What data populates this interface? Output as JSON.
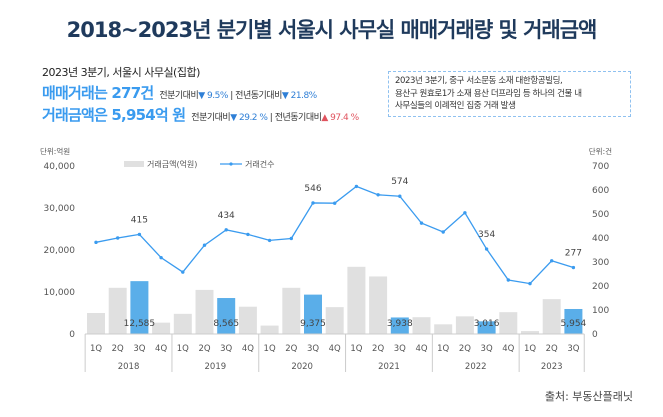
{
  "title": "2018~2023년 분기별 서울시 사무실 매매거래량 및 거래금액",
  "summary": {
    "period": "2023년 3분기, 서울시 사무실(집합)",
    "count_text": "매매거래는 277건",
    "count_qoq_label": "전분기대비",
    "count_qoq": "▼ 9.5%",
    "count_yoy_label": "전년동기대비",
    "count_yoy": "▼ 21.8%",
    "amount_text": "거래금액은  5,954억 원",
    "amount_qoq_label": "전분기대비",
    "amount_qoq": "▼ 29.2 %",
    "amount_yoy_label": "전년동기대비",
    "amount_yoy": "▲ 97.4 %"
  },
  "note": [
    "2023년 3분기, 중구 서소문동 소재 대한항공빌딩,",
    "용산구 원효로1가 소재 용산 더프라임 등 하나의 건물 내",
    "사무실들의 이례적인 집중 거래 발생"
  ],
  "source": "출처: 부동산플래닛",
  "colors": {
    "bar": "#e0e0e0",
    "bar_highlight": "#5aaee9",
    "line": "#3a9bef",
    "title": "#1f3a5c"
  },
  "chart_data": {
    "type": "bar+line",
    "left_unit": "단위:억원",
    "right_unit": "단위:건",
    "ylim_left": [
      0,
      40000
    ],
    "yticks_left": [
      "0",
      "10,000",
      "20,000",
      "30,000",
      "40,000"
    ],
    "ylim_right": [
      0,
      700
    ],
    "yticks_right": [
      "0",
      "100",
      "200",
      "300",
      "400",
      "500",
      "600",
      "700"
    ],
    "years": [
      "2018",
      "2019",
      "2020",
      "2021",
      "2022",
      "2023"
    ],
    "categories": [
      "1Q",
      "2Q",
      "3Q",
      "4Q",
      "1Q",
      "2Q",
      "3Q",
      "4Q",
      "1Q",
      "2Q",
      "3Q",
      "4Q",
      "1Q",
      "2Q",
      "3Q",
      "4Q",
      "1Q",
      "2Q",
      "3Q",
      "4Q",
      "1Q",
      "2Q",
      "3Q"
    ],
    "series": [
      {
        "name": "거래금액(억원)",
        "type": "bar",
        "axis": "left",
        "values": [
          5000,
          11000,
          12585,
          2700,
          4800,
          10500,
          8565,
          6500,
          2000,
          11000,
          9375,
          6400,
          16000,
          13700,
          3938,
          4000,
          2300,
          4200,
          3016,
          5200,
          700,
          8300,
          5954
        ],
        "labels": {
          "2": "12,585",
          "6": "8,565",
          "10": "9,375",
          "14": "3,938",
          "18": "3,016",
          "22": "5,954"
        },
        "highlight": [
          2,
          6,
          10,
          14,
          18,
          22
        ]
      },
      {
        "name": "거래건수",
        "type": "line",
        "axis": "right",
        "values": [
          382,
          400,
          415,
          318,
          258,
          370,
          434,
          415,
          390,
          398,
          546,
          545,
          615,
          580,
          574,
          462,
          425,
          505,
          354,
          225,
          210,
          305,
          277
        ],
        "labels": {
          "2": "415",
          "6": "434",
          "10": "546",
          "14": "574",
          "18": "354",
          "22": "277"
        }
      }
    ],
    "legend": "top-center",
    "grid": false
  }
}
